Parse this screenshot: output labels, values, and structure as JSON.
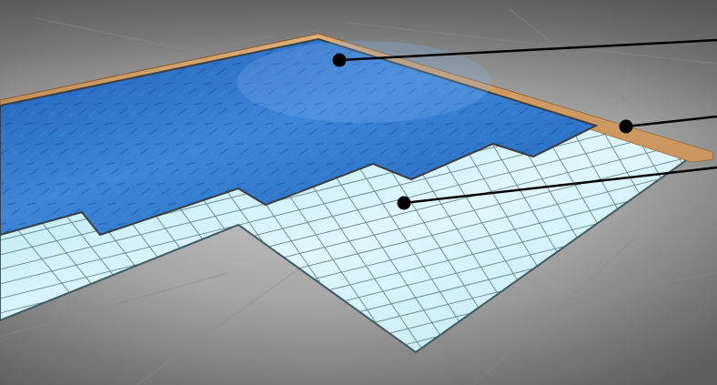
{
  "figure": {
    "kind": "3D illustration of layered flooring installation",
    "layers": [
      {
        "id": "top-layer",
        "color": "#2a6fc7",
        "pattern": "diamond-plate"
      },
      {
        "id": "edge-strip",
        "color": "#c8945c",
        "pattern": "plain"
      },
      {
        "id": "underlayment",
        "color": "#cdeff7",
        "pattern": "square-grid"
      }
    ],
    "base": {
      "color": "#a8a8a8",
      "pattern": "concrete-slabs"
    },
    "callouts": [
      {
        "target": "top-layer",
        "label": ""
      },
      {
        "target": "edge-strip",
        "label": ""
      },
      {
        "target": "underlayment",
        "label": ""
      }
    ]
  }
}
